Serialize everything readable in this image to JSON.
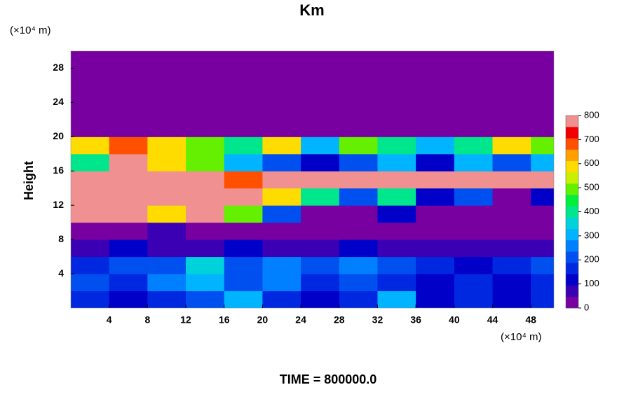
{
  "chart_data": {
    "type": "contour",
    "title": "Km",
    "x_unit": "(×10⁴ m)",
    "y_unit": "(×10⁴ m)",
    "y_label": "Height",
    "footer": "TIME = 800000.0",
    "xlim": [
      0,
      50.4
    ],
    "ylim": [
      0,
      30
    ],
    "xticks": [
      4,
      8,
      12,
      16,
      20,
      24,
      28,
      32,
      36,
      40,
      44,
      48
    ],
    "yticks": [
      4,
      8,
      12,
      16,
      20,
      24,
      28
    ],
    "x": [
      2,
      6,
      10,
      14,
      18,
      22,
      26,
      30,
      34,
      38,
      42,
      46,
      50
    ],
    "y": [
      1,
      3,
      5,
      7,
      9,
      11,
      13,
      15,
      17,
      19,
      21,
      23,
      25,
      27,
      29
    ],
    "z": [
      [
        150,
        100,
        150,
        200,
        300,
        150,
        100,
        150,
        300,
        100,
        150,
        100,
        150
      ],
      [
        200,
        150,
        250,
        300,
        200,
        250,
        150,
        200,
        150,
        100,
        150,
        100,
        150
      ],
      [
        150,
        200,
        200,
        350,
        200,
        250,
        200,
        250,
        200,
        150,
        100,
        150,
        200
      ],
      [
        50,
        100,
        50,
        50,
        100,
        50,
        50,
        100,
        50,
        50,
        50,
        50,
        50
      ],
      [
        0,
        0,
        50,
        0,
        0,
        0,
        0,
        0,
        0,
        0,
        0,
        0,
        0
      ],
      [
        800,
        800,
        600,
        800,
        500,
        200,
        0,
        0,
        100,
        0,
        0,
        0,
        0
      ],
      [
        800,
        800,
        800,
        800,
        800,
        600,
        400,
        200,
        400,
        100,
        200,
        0,
        100
      ],
      [
        800,
        800,
        800,
        800,
        700,
        800,
        800,
        800,
        800,
        800,
        800,
        800,
        800
      ],
      [
        400,
        800,
        600,
        500,
        300,
        200,
        100,
        200,
        300,
        100,
        300,
        200,
        300
      ],
      [
        600,
        700,
        600,
        500,
        400,
        600,
        300,
        500,
        400,
        300,
        400,
        600,
        500
      ],
      [
        0,
        0,
        0,
        0,
        0,
        0,
        0,
        0,
        0,
        0,
        0,
        0,
        0
      ],
      [
        0,
        0,
        0,
        0,
        0,
        0,
        0,
        0,
        0,
        0,
        0,
        0,
        0
      ],
      [
        0,
        0,
        0,
        0,
        0,
        0,
        0,
        0,
        0,
        0,
        0,
        0,
        0
      ],
      [
        0,
        0,
        0,
        0,
        0,
        0,
        0,
        0,
        0,
        0,
        0,
        0,
        0
      ],
      [
        0,
        0,
        0,
        0,
        0,
        0,
        0,
        0,
        0,
        0,
        0,
        0,
        0
      ]
    ],
    "zlim": [
      0,
      800
    ],
    "zticks": [
      0,
      100,
      200,
      300,
      400,
      500,
      600,
      700,
      800
    ],
    "colors": [
      "#7800a0",
      "#3c00b4",
      "#0000c8",
      "#0028e0",
      "#0050f0",
      "#0080ff",
      "#00b4ff",
      "#00d2dc",
      "#00e68c",
      "#00f03c",
      "#64f000",
      "#c8f000",
      "#ffdc00",
      "#ffa000",
      "#ff5000",
      "#f00000",
      "#f09090"
    ]
  }
}
